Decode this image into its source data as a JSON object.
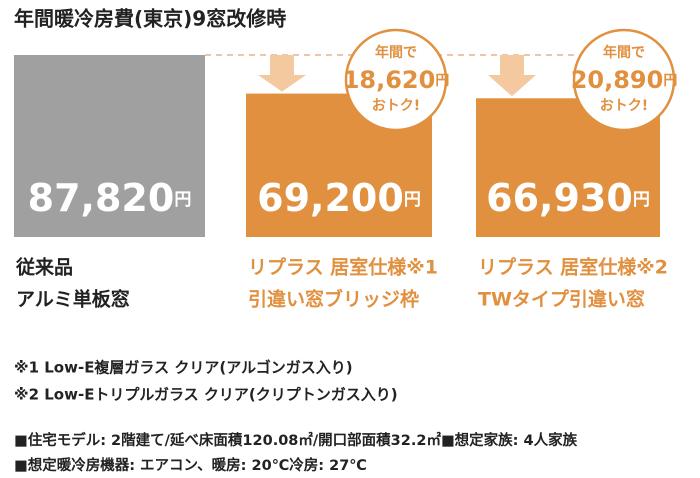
{
  "title": "年間暖冷房費(東京)9窓改修時",
  "chart_data": {
    "type": "bar",
    "categories": [
      [
        "従来品",
        "アルミ単板窓"
      ],
      [
        "リプラス 居室仕様※1",
        "引違い窓ブリッジ枠"
      ],
      [
        "リプラス 居室仕様※2",
        "TWタイプ引違い窓"
      ]
    ],
    "values": [
      87820,
      69200,
      66930
    ],
    "value_labels": [
      "87,820",
      "69,200",
      "66,930"
    ],
    "unit": "円",
    "colors": [
      "#a0a0a0",
      "#e0903e",
      "#e0903e"
    ],
    "annotations": [
      null,
      {
        "top": "年間で",
        "amount": {
          "value": 18620,
          "label": "18,620"
        },
        "unit": "円",
        "bottom": "おトク!"
      },
      {
        "top": "年間で",
        "amount": {
          "value": 20890,
          "label": "20,890"
        },
        "unit": "円",
        "bottom": "おトク!"
      }
    ]
  },
  "footnotes": [
    "※1 Low-E複層ガラス クリア(アルゴンガス入り)",
    "※2 Low-Eトリプルガラス クリア(クリプトンガス入り)"
  ],
  "notes": [
    "■住宅モデル: 2階建て/延べ床面積120.08㎡/開口部面積32.2㎡■想定家族: 4人家族",
    "■想定暖冷房機器: エアコン、暖房: 20℃冷房: 27℃"
  ]
}
